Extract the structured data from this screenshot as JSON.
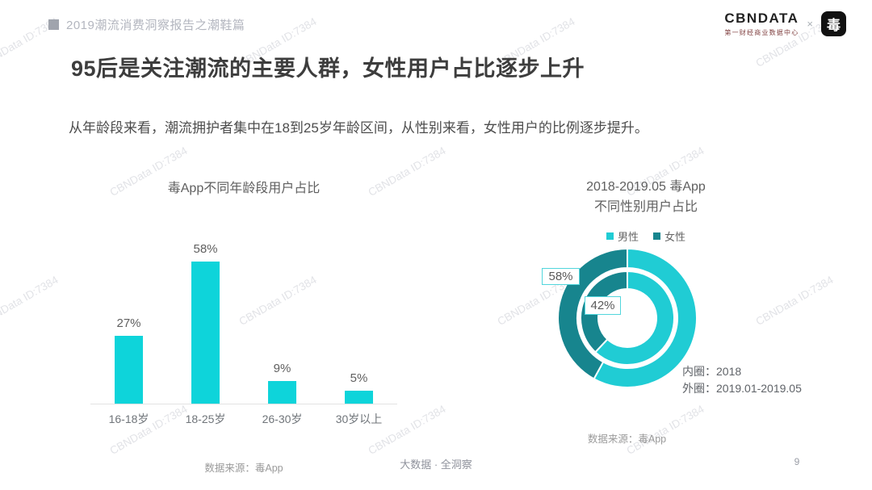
{
  "page": {
    "header": "2019潮流消费洞察报告之潮鞋篇",
    "title": "95后是关注潮流的主要人群，女性用户占比逐步上升",
    "subtitle": "从年龄段来看，潮流拥护者集中在18到25岁年龄区间，从性别来看，女性用户的比例逐步提升。",
    "footer": "大数据 · 全洞察",
    "page_number": "9"
  },
  "logos": {
    "cbndata": "CBNDATA",
    "cbndata_sub": "第一财经商业数据中心",
    "separator": "×",
    "app_logo_glyph": "毒"
  },
  "watermark": {
    "text": "CBNData ID:7384"
  },
  "colors": {
    "bar_cyan": "#0ed4da",
    "donut_male": "#20ccd4",
    "donut_female": "#17858e",
    "title_text": "#3d3d3d",
    "muted_text": "#9a9a9a"
  },
  "chart_data": [
    {
      "type": "bar",
      "title": "毒App不同年龄段用户占比",
      "categories": [
        "16-18岁",
        "18-25岁",
        "26-30岁",
        "30岁以上"
      ],
      "values": [
        27,
        58,
        9,
        5
      ],
      "value_labels": [
        "27%",
        "58%",
        "9%",
        "5%"
      ],
      "unit": "%",
      "ylim": [
        0,
        60
      ],
      "grid": false,
      "bar_color": "#0ed4da",
      "source": "数据来源：毒App"
    },
    {
      "type": "donut",
      "title_line1": "2018-2019.05 毒App",
      "title_line2": "不同性别用户占比",
      "legend": [
        {
          "label": "男性",
          "color": "#20ccd4"
        },
        {
          "label": "女性",
          "color": "#17858e"
        }
      ],
      "rings": [
        {
          "name": "内圈",
          "period": "2018",
          "male_pct": 62,
          "female_pct": 38,
          "labeled": false
        },
        {
          "name": "外圈",
          "period": "2019.01-2019.05",
          "male_pct": 58,
          "female_pct": 42,
          "labeled": true
        }
      ],
      "callouts": [
        {
          "text": "58%"
        },
        {
          "text": "42%"
        }
      ],
      "ring_note_lines": [
        "内圈：2018",
        "外圈：2019.01-2019.05"
      ],
      "source": "数据来源：毒App"
    }
  ]
}
